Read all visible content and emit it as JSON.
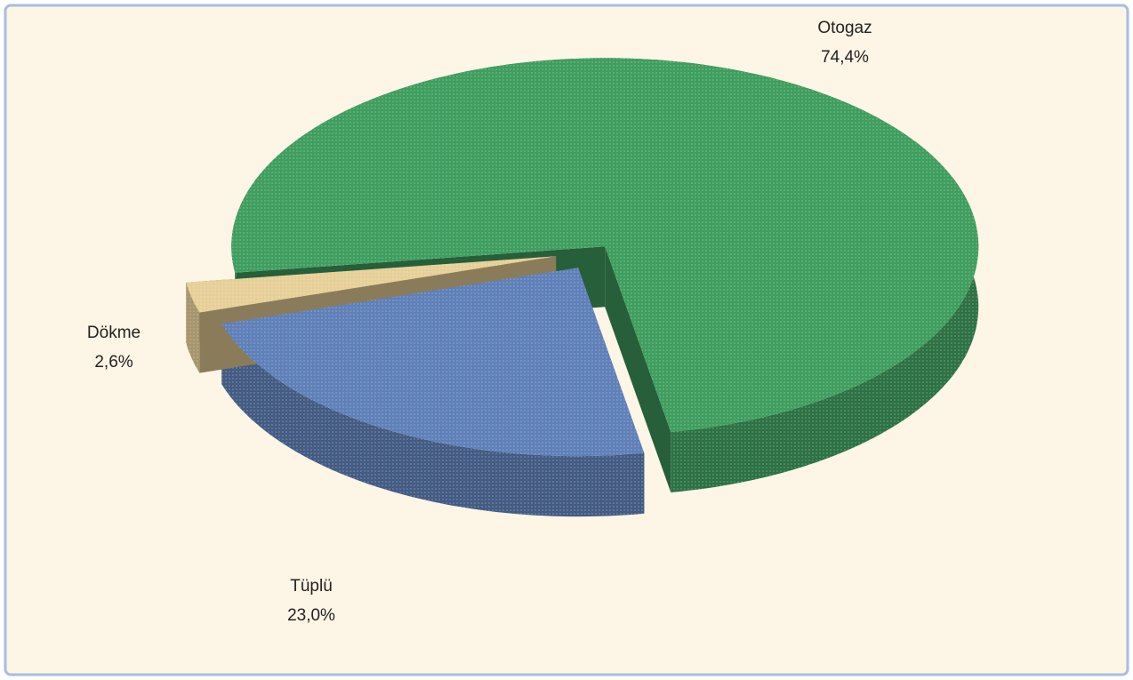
{
  "chart_data": {
    "type": "pie",
    "categories": [
      "Otogaz",
      "Tüplü",
      "Dökme"
    ],
    "values": [
      74.4,
      23.0,
      2.6
    ],
    "value_labels": [
      "74,4%",
      "23,0%",
      "2,6%"
    ],
    "colors": [
      "#3f9e5f",
      "#5f80b8",
      "#e6cf98"
    ]
  }
}
